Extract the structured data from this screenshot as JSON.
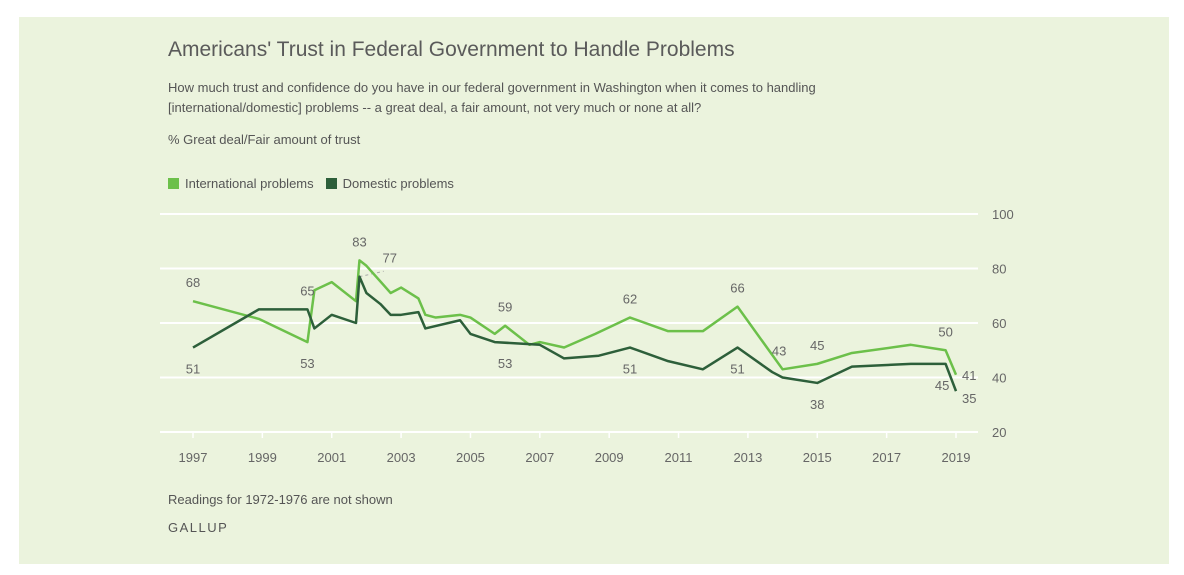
{
  "title": "Americans' Trust in Federal Government to Handle Problems",
  "subtitle": "How much trust and confidence do you have in our federal government in Washington when it comes to handling [international/domestic] problems -- a great deal, a fair amount, not very much or none at all?",
  "unit_label": "% Great deal/Fair amount of trust",
  "note": "Readings for 1972-1976 are not shown",
  "brand": "GALLUP",
  "chart_data": {
    "type": "line",
    "ylim": [
      20,
      100
    ],
    "yticks": [
      20,
      40,
      60,
      80,
      100
    ],
    "xlim": [
      1997,
      2019
    ],
    "xticks": [
      "1997",
      "1999",
      "2001",
      "2003",
      "2005",
      "2007",
      "2009",
      "2011",
      "2013",
      "2015",
      "2017",
      "2019"
    ],
    "grid": true,
    "legend_placement": "top-left",
    "series": [
      {
        "name": "International problems",
        "color": "#6cc04a",
        "x": [
          1997.0,
          1998.9,
          2000.3,
          2000.5,
          2001.0,
          2001.7,
          2001.8,
          2002.0,
          2002.7,
          2003.0,
          2003.5,
          2003.7,
          2004.0,
          2004.7,
          2005.0,
          2005.7,
          2006.0,
          2006.7,
          2007.0,
          2007.7,
          2008.6,
          2009.6,
          2010.7,
          2011.7,
          2012.7,
          2014.0,
          2015.0,
          2016.0,
          2017.7,
          2018.7,
          2019.0
        ],
        "y": [
          68,
          61.5,
          53,
          72,
          75,
          68,
          83,
          81,
          71,
          73,
          69,
          63,
          62,
          63,
          62,
          56,
          59,
          52,
          53,
          51,
          56,
          62,
          57,
          57,
          66,
          43,
          45,
          49,
          52,
          50,
          41
        ]
      },
      {
        "name": "Domestic problems",
        "color": "#2d5f3a",
        "x": [
          1997.0,
          1998.9,
          2000.3,
          2000.5,
          2001.0,
          2001.7,
          2001.8,
          2002.0,
          2002.4,
          2002.7,
          2003.0,
          2003.5,
          2003.7,
          2004.7,
          2005.0,
          2005.7,
          2007.0,
          2007.7,
          2008.7,
          2009.6,
          2010.7,
          2011.7,
          2012.7,
          2013.7,
          2014.0,
          2015.0,
          2016.0,
          2017.7,
          2018.7,
          2019.0
        ],
        "y": [
          51,
          65,
          65,
          58,
          63,
          60,
          77,
          71,
          67,
          63,
          63,
          64,
          58,
          61,
          56,
          53,
          52,
          47,
          48,
          51,
          46,
          43,
          51,
          42,
          40,
          38,
          44,
          45,
          45,
          35
        ]
      }
    ],
    "data_labels": [
      {
        "text": "68",
        "x": 1997.0,
        "y": 68,
        "pos": "above"
      },
      {
        "text": "51",
        "x": 1997.0,
        "y": 51,
        "pos": "below"
      },
      {
        "text": "65",
        "x": 2000.3,
        "y": 65,
        "pos": "above"
      },
      {
        "text": "53",
        "x": 2000.3,
        "y": 53,
        "pos": "below"
      },
      {
        "text": "83",
        "x": 2001.8,
        "y": 83,
        "pos": "above"
      },
      {
        "text": "77",
        "x": 2002.5,
        "y": 77,
        "pos": "aboveright"
      },
      {
        "text": "59",
        "x": 2006.0,
        "y": 59,
        "pos": "above"
      },
      {
        "text": "53",
        "x": 2006.0,
        "y": 53,
        "pos": "below"
      },
      {
        "text": "62",
        "x": 2009.6,
        "y": 62,
        "pos": "above"
      },
      {
        "text": "51",
        "x": 2009.6,
        "y": 51,
        "pos": "below"
      },
      {
        "text": "66",
        "x": 2012.7,
        "y": 66,
        "pos": "above"
      },
      {
        "text": "51",
        "x": 2012.7,
        "y": 51,
        "pos": "below"
      },
      {
        "text": "43",
        "x": 2013.9,
        "y": 43,
        "pos": "above"
      },
      {
        "text": "45",
        "x": 2015.0,
        "y": 45,
        "pos": "above"
      },
      {
        "text": "38",
        "x": 2015.0,
        "y": 38,
        "pos": "below"
      },
      {
        "text": "50",
        "x": 2018.7,
        "y": 50,
        "pos": "above"
      },
      {
        "text": "45",
        "x": 2018.6,
        "y": 45,
        "pos": "below"
      },
      {
        "text": "41",
        "x": 2019.0,
        "y": 41,
        "pos": "right"
      },
      {
        "text": "35",
        "x": 2019.0,
        "y": 35,
        "pos": "rightbelow"
      }
    ]
  }
}
